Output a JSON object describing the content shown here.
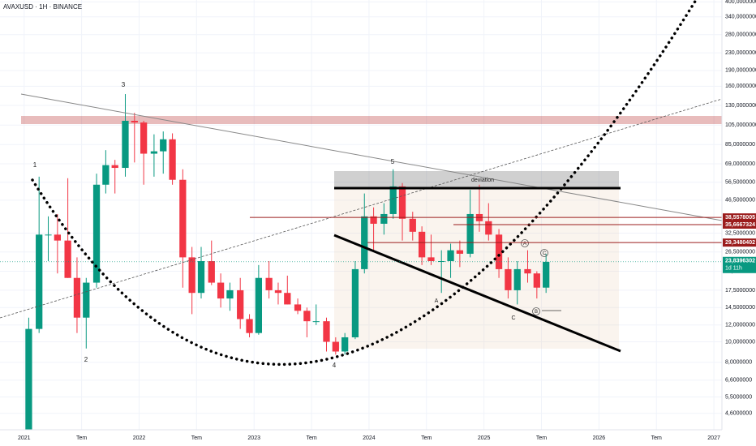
{
  "chart_data": {
    "type": "candlestick",
    "title": "AVAXUSD · 1H · BINANCE",
    "log_scale": true,
    "grid": true,
    "up_color": "#089981",
    "down_color": "#f23645",
    "x": [
      2021.04,
      2021.13,
      2021.21,
      2021.29,
      2021.38,
      2021.46,
      2021.54,
      2021.63,
      2021.71,
      2021.79,
      2021.88,
      2021.96,
      2022.04,
      2022.13,
      2022.21,
      2022.29,
      2022.38,
      2022.46,
      2022.54,
      2022.63,
      2022.71,
      2022.79,
      2022.88,
      2022.96,
      2023.04,
      2023.13,
      2023.21,
      2023.29,
      2023.38,
      2023.46,
      2023.54,
      2023.63,
      2023.71,
      2023.79,
      2023.88,
      2023.96,
      2024.04,
      2024.13,
      2024.21,
      2024.29,
      2024.38,
      2024.46,
      2024.54,
      2024.63,
      2024.71,
      2024.79,
      2024.88,
      2024.96,
      2025.04,
      2025.13,
      2025.21,
      2025.29,
      2025.38,
      2025.46,
      2025.54
    ],
    "open": [
      3.4,
      11.5,
      32,
      32,
      30,
      20,
      13,
      19,
      55,
      68,
      66,
      110,
      108,
      77,
      79,
      90,
      58,
      25,
      17,
      24,
      19,
      16,
      17.5,
      12.8,
      11,
      20,
      17.5,
      17,
      15,
      14,
      12.5,
      12.5,
      10,
      9,
      10.5,
      22,
      39,
      36,
      40,
      54,
      38,
      33,
      25,
      24,
      24,
      27,
      26,
      40,
      37,
      32,
      22,
      17.5,
      22,
      21,
      18
    ],
    "high": [
      13,
      60,
      39,
      40,
      59,
      25,
      20,
      62,
      80,
      72,
      147,
      120,
      110,
      95,
      98,
      96,
      65,
      28,
      28,
      30,
      21,
      19,
      20,
      13.5,
      23,
      24,
      19,
      20.5,
      16,
      14.5,
      15,
      13,
      10.5,
      11,
      24,
      50,
      43,
      45,
      65,
      56,
      41,
      35,
      32,
      27,
      29,
      30,
      52,
      55,
      45,
      34,
      25,
      24,
      27,
      21.5,
      26
    ],
    "low": [
      3,
      11,
      24,
      21,
      20,
      11,
      9.3,
      18,
      50,
      50,
      60,
      70,
      55,
      60,
      62,
      55,
      18,
      13.5,
      16,
      18.5,
      14.5,
      14,
      11.5,
      10.5,
      10.8,
      16,
      15,
      15,
      13.5,
      10.5,
      12,
      9,
      8.7,
      8.7,
      10.3,
      21,
      27,
      32,
      38,
      30,
      30,
      23,
      23,
      17,
      20,
      22.5,
      25,
      33,
      30,
      20,
      16,
      15,
      19,
      16,
      17
    ],
    "close": [
      11.5,
      32,
      32,
      30,
      20,
      13,
      19,
      55,
      68,
      66,
      110,
      108,
      77,
      79,
      90,
      58,
      25,
      17,
      24,
      19,
      16,
      17.5,
      12.8,
      11,
      20,
      17.5,
      17,
      15,
      14,
      12.5,
      12.5,
      10,
      9,
      10.5,
      22,
      39,
      36,
      40,
      54,
      38,
      33,
      25,
      24,
      24,
      27,
      26,
      40,
      37,
      32,
      22,
      17.5,
      22,
      21,
      18,
      23.8
    ],
    "xlim": [
      2020.79,
      2027.07
    ],
    "xticks": [
      2021,
      {
        "value": 2021.5,
        "label": "Tem"
      },
      2022,
      {
        "value": 2022.5,
        "label": "Tem"
      },
      2023,
      {
        "value": 2023.5,
        "label": "Tem"
      },
      2024,
      {
        "value": 2024.5,
        "label": "Tem"
      },
      2025,
      {
        "value": 2025.5,
        "label": "Tem"
      },
      2026,
      {
        "value": 2026.5,
        "label": "Tem"
      },
      2027
    ],
    "ylim": [
      3.85,
      408
    ],
    "yticks": [
      {
        "value": 400,
        "label": "400,0000000"
      },
      {
        "value": 340,
        "label": "340,0000000"
      },
      {
        "value": 280,
        "label": "280,0000000"
      },
      {
        "value": 230,
        "label": "230,0000000"
      },
      {
        "value": 190,
        "label": "190,0000000"
      },
      {
        "value": 160,
        "label": "160,0000000"
      },
      {
        "value": 130,
        "label": "130,0000000"
      },
      {
        "value": 105,
        "label": "105,0000000"
      },
      {
        "value": 85,
        "label": "85,0000000"
      },
      {
        "value": 69,
        "label": "69,0000000"
      },
      {
        "value": 56.5,
        "label": "56,5000000"
      },
      {
        "value": 46.5,
        "label": "46,5000000"
      },
      {
        "value": 32.5,
        "label": "32,5000000"
      },
      {
        "value": 26.5,
        "label": "26,5000000"
      },
      {
        "value": 21.5,
        "label": "21,5000000"
      },
      {
        "value": 17.5,
        "label": "17,5000000"
      },
      {
        "value": 14.5,
        "label": "14,5000000"
      },
      {
        "value": 12,
        "label": "12,0000000"
      },
      {
        "value": 10,
        "label": "10,0000000"
      },
      {
        "value": 8,
        "label": "8,0000000"
      },
      {
        "value": 6.6,
        "label": "6,6000000"
      },
      {
        "value": 5.5,
        "label": "5,5000000"
      },
      {
        "value": 4.6,
        "label": "4,6000000"
      }
    ],
    "price_lines": [
      {
        "value": 38.5578005,
        "label": "38,5578005",
        "color": "#9b1c1c"
      },
      {
        "value": 35.6667324,
        "label": "35,6667324",
        "color": "#9b1c1c"
      },
      {
        "value": 29.3480402,
        "label": "29,3480402",
        "color": "#9b1c1c"
      }
    ],
    "last_price": {
      "value": 23.8396302,
      "label": "23,8396302",
      "countdown": "1d 11h",
      "color": "#089981"
    },
    "annotations": [
      "1",
      "2",
      "3",
      "4",
      "5",
      "deviation",
      "A",
      "C",
      "A",
      "B",
      "C"
    ]
  }
}
